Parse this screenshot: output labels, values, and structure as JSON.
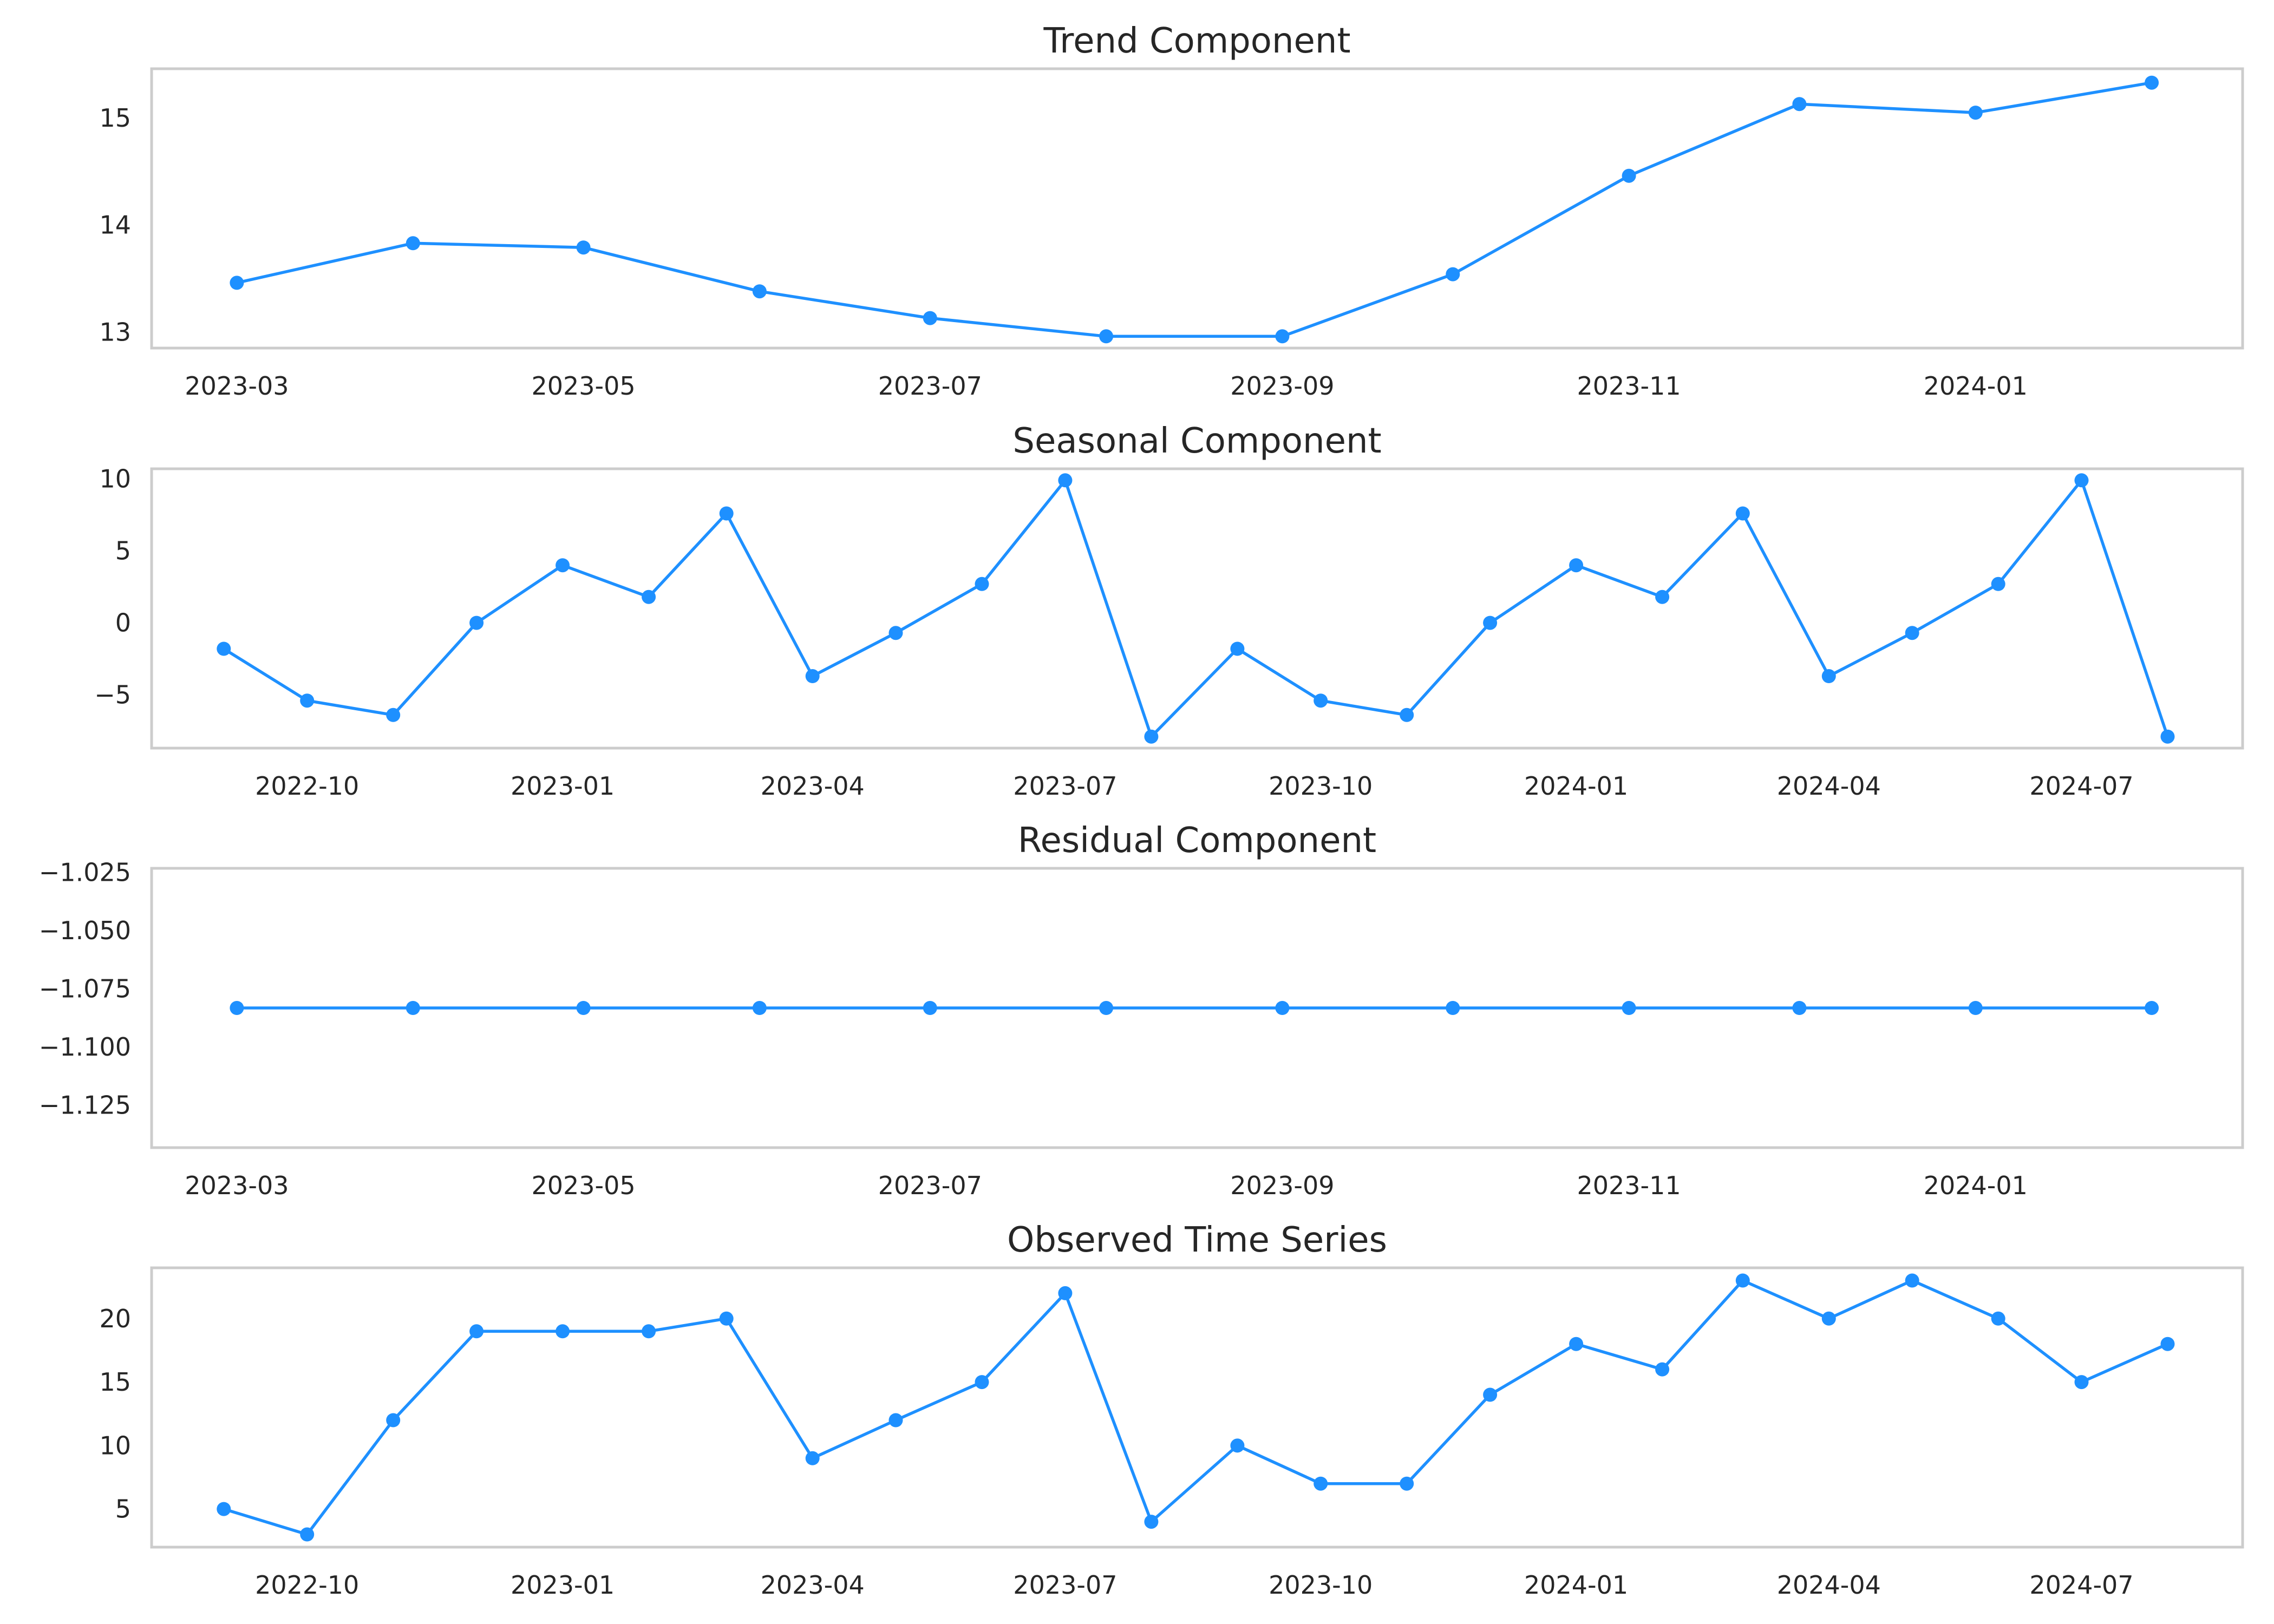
{
  "chart_data": [
    {
      "type": "line",
      "title": "Trend Component",
      "xlabel": "",
      "ylabel": "",
      "x": [
        "2023-03-01",
        "2023-04-01",
        "2023-05-01",
        "2023-06-01",
        "2023-07-01",
        "2023-08-01",
        "2023-09-01",
        "2023-10-01",
        "2023-11-01",
        "2023-12-01",
        "2024-01-01",
        "2024-02-01"
      ],
      "series": [
        {
          "values": [
            13.46,
            13.83,
            13.79,
            13.38,
            13.13,
            12.96,
            12.96,
            13.54,
            14.46,
            15.13,
            15.05,
            15.33
          ]
        }
      ],
      "xticks": [
        "2023-03",
        "2023-05",
        "2023-07",
        "2023-09",
        "2023-11",
        "2024-01"
      ],
      "yticks": [
        "13",
        "14",
        "15"
      ],
      "xlim": [
        "2023-02-14",
        "2024-02-17"
      ],
      "ylim": [
        12.85,
        15.46
      ],
      "grid": false,
      "marker": "circle"
    },
    {
      "type": "line",
      "title": "Seasonal Component",
      "xlabel": "",
      "ylabel": "",
      "x": [
        "2022-09-01",
        "2022-10-01",
        "2022-11-01",
        "2022-12-01",
        "2023-01-01",
        "2023-02-01",
        "2023-03-01",
        "2023-04-01",
        "2023-05-01",
        "2023-06-01",
        "2023-07-01",
        "2023-08-01",
        "2023-09-01",
        "2023-10-01",
        "2023-11-01",
        "2023-12-01",
        "2024-01-01",
        "2024-02-01",
        "2024-03-01",
        "2024-04-01",
        "2024-05-01",
        "2024-06-01",
        "2024-07-01",
        "2024-08-01"
      ],
      "series": [
        {
          "values": [
            -1.8,
            -5.4,
            -6.4,
            0.0,
            4.0,
            1.8,
            7.6,
            -3.7,
            -0.7,
            2.7,
            9.9,
            -7.9,
            -1.8,
            -5.4,
            -6.4,
            0.0,
            4.0,
            1.8,
            7.6,
            -3.7,
            -0.7,
            2.7,
            9.9,
            -7.9
          ]
        }
      ],
      "xticks": [
        "2022-10",
        "2023-01",
        "2023-04",
        "2023-07",
        "2023-10",
        "2024-01",
        "2024-04",
        "2024-07"
      ],
      "yticks": [
        "−5",
        "0",
        "5",
        "10"
      ],
      "xlim": [
        "2022-08-06",
        "2024-08-28"
      ],
      "ylim": [
        -8.7,
        10.7
      ],
      "grid": false,
      "marker": "circle"
    },
    {
      "type": "line",
      "title": "Residual Component",
      "xlabel": "",
      "ylabel": "",
      "x": [
        "2023-03-01",
        "2023-04-01",
        "2023-05-01",
        "2023-06-01",
        "2023-07-01",
        "2023-08-01",
        "2023-09-01",
        "2023-10-01",
        "2023-11-01",
        "2023-12-01",
        "2024-01-01",
        "2024-02-01"
      ],
      "series": [
        {
          "values": [
            -1.0833,
            -1.0833,
            -1.0833,
            -1.0833,
            -1.0833,
            -1.0833,
            -1.0833,
            -1.0833,
            -1.0833,
            -1.0833,
            -1.0833,
            -1.0833
          ]
        }
      ],
      "xticks": [
        "2023-03",
        "2023-05",
        "2023-07",
        "2023-09",
        "2023-11",
        "2024-01"
      ],
      "yticks": [
        "−1.125",
        "−1.100",
        "−1.075",
        "−1.050",
        "−1.025"
      ],
      "xlim": [
        "2023-02-14",
        "2024-02-17"
      ],
      "ylim": [
        -1.1433,
        -1.0233
      ],
      "grid": false,
      "marker": "circle"
    },
    {
      "type": "line",
      "title": "Observed Time Series",
      "xlabel": "",
      "ylabel": "",
      "x": [
        "2022-09-01",
        "2022-10-01",
        "2022-11-01",
        "2022-12-01",
        "2023-01-01",
        "2023-02-01",
        "2023-03-01",
        "2023-04-01",
        "2023-05-01",
        "2023-06-01",
        "2023-07-01",
        "2023-08-01",
        "2023-09-01",
        "2023-10-01",
        "2023-11-01",
        "2023-12-01",
        "2024-01-01",
        "2024-02-01",
        "2024-03-01",
        "2024-04-01",
        "2024-05-01",
        "2024-06-01",
        "2024-07-01",
        "2024-08-01"
      ],
      "series": [
        {
          "values": [
            5,
            3,
            12,
            19,
            19,
            19,
            20,
            9,
            12,
            15,
            22,
            4,
            10,
            7,
            7,
            14,
            18,
            16,
            23,
            20,
            23,
            20,
            15,
            18
          ]
        }
      ],
      "xticks": [
        "2022-10",
        "2023-01",
        "2023-04",
        "2023-07",
        "2023-10",
        "2024-01",
        "2024-04",
        "2024-07"
      ],
      "yticks": [
        "5",
        "10",
        "15",
        "20"
      ],
      "xlim": [
        "2022-08-06",
        "2024-08-28"
      ],
      "ylim": [
        2.0,
        24.0
      ],
      "grid": false,
      "marker": "circle"
    }
  ],
  "colors": {
    "line": "#1e90ff",
    "marker": "#1e90ff",
    "frame": "#cccccc",
    "text": "#262626"
  }
}
